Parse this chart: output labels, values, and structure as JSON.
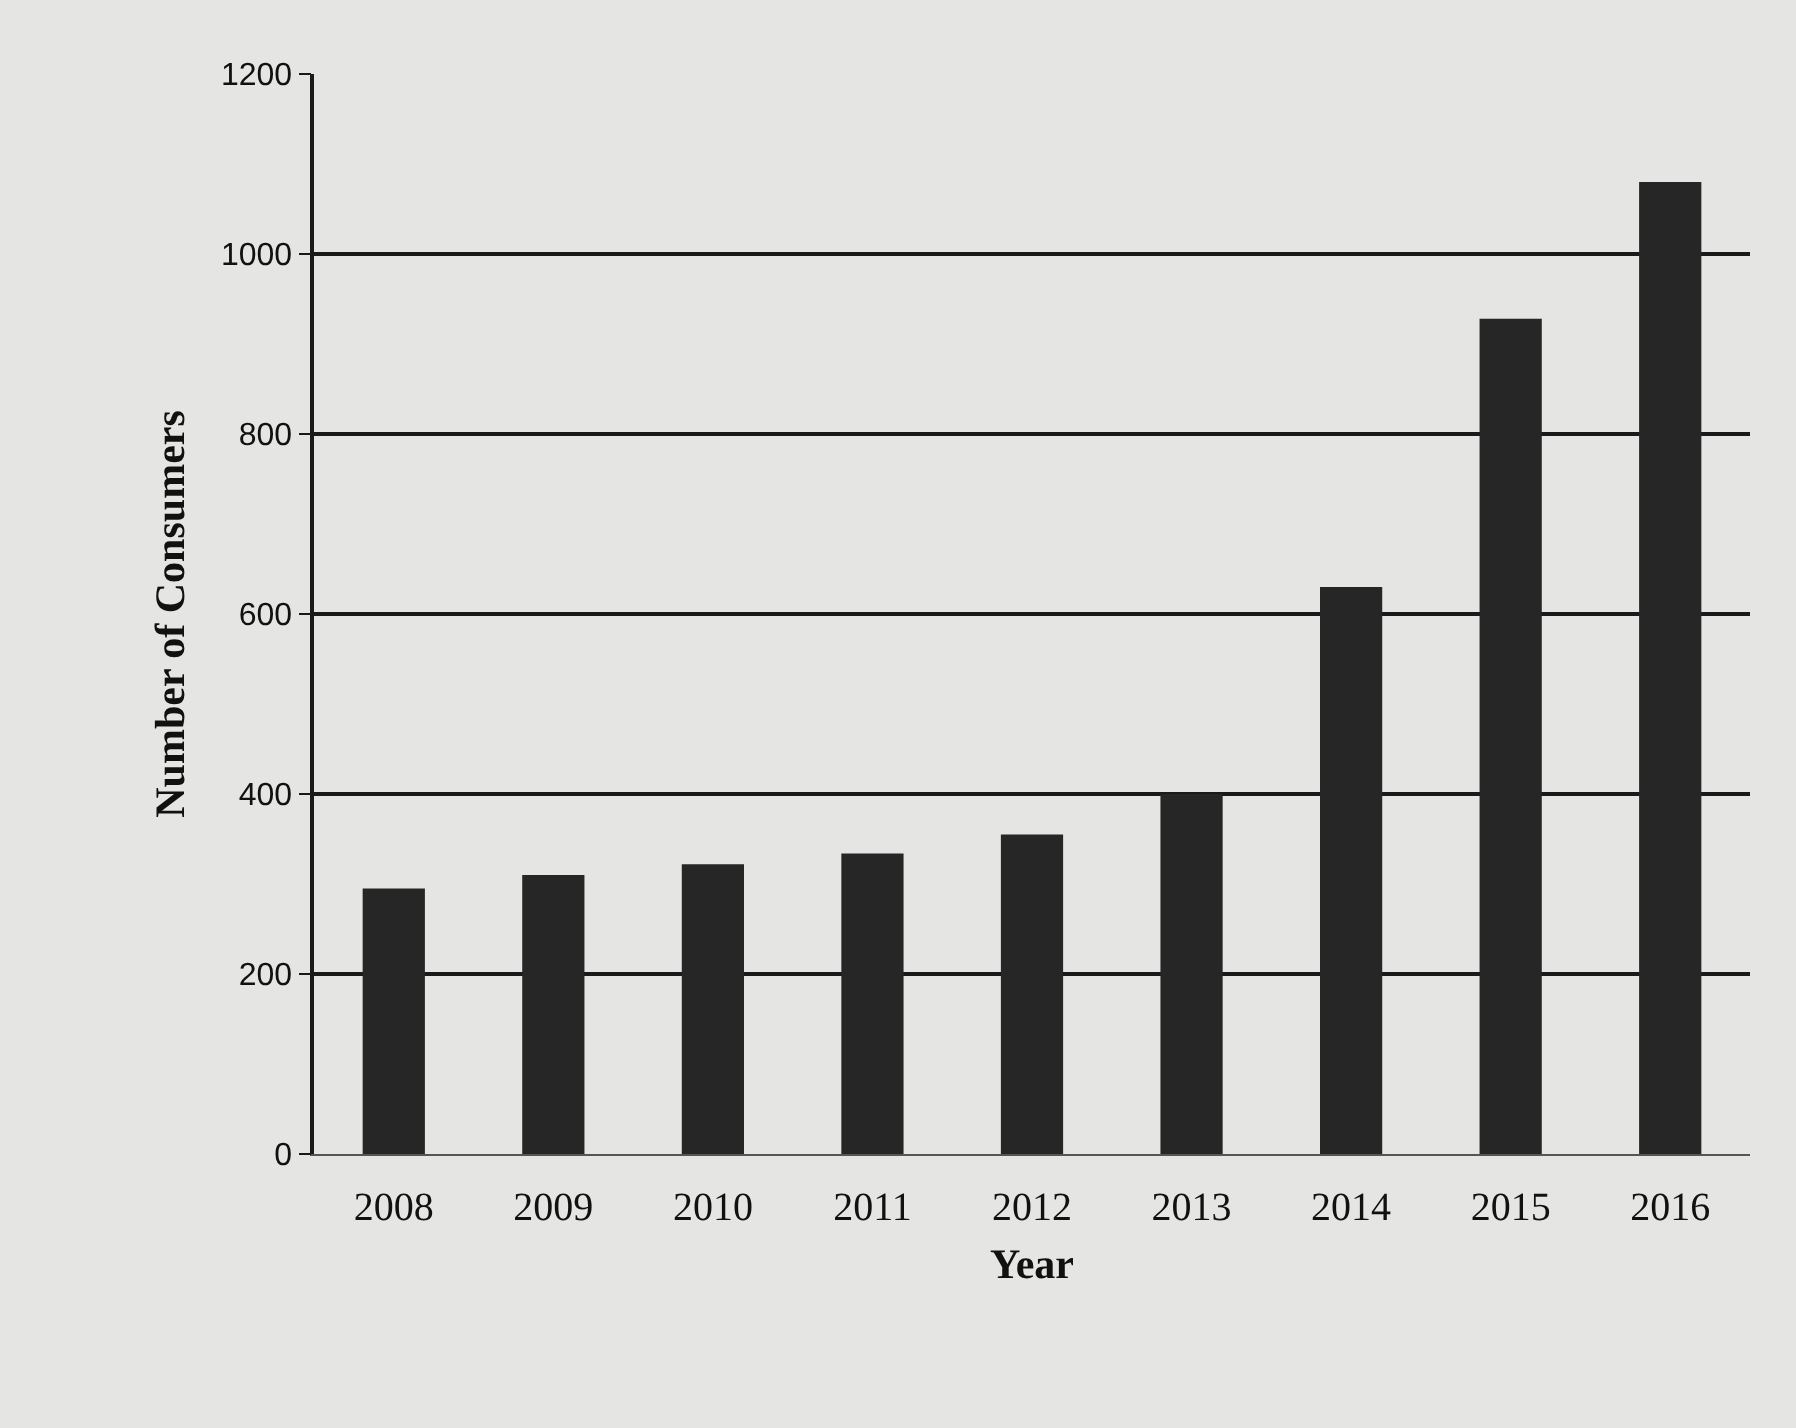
{
  "chart_data": {
    "type": "bar",
    "categories": [
      "2008",
      "2009",
      "2010",
      "2011",
      "2012",
      "2013",
      "2014",
      "2015",
      "2016"
    ],
    "values": [
      295,
      310,
      322,
      334,
      355,
      400,
      630,
      928,
      1080
    ],
    "color": "#262626",
    "xlabel": "Year",
    "ylabel": "Number of Consumers",
    "ylim": [
      0,
      1200
    ],
    "yticks": [
      0,
      200,
      400,
      600,
      800,
      1000,
      1200
    ],
    "grid": "y"
  }
}
